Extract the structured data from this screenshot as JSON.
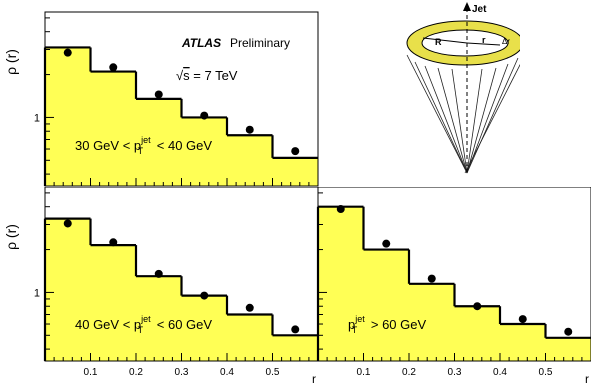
{
  "colors": {
    "fill": "#ffff55",
    "line": "#000000",
    "marker": "#000000",
    "cone_ring": "#e8e04a"
  },
  "ylabel": "ρ (r)",
  "xlabel": "r",
  "x_ticks": [
    "0.1",
    "0.2",
    "0.3",
    "0.4",
    "0.5"
  ],
  "y_tick_label": "1",
  "atlas": {
    "brand": "ATLAS",
    "status": "Preliminary",
    "energy_sqrt": "s",
    "energy_rest": " = 7 TeV"
  },
  "cone": {
    "jet": "Jet",
    "R": "R",
    "r": "r",
    "dr": "Δr"
  },
  "chart_data": [
    {
      "type": "histogram",
      "ylabel": "ρ (r)",
      "xlabel": "",
      "yscale": "log",
      "xlim": [
        0,
        0.6
      ],
      "ylim": [
        0.33,
        5.5
      ],
      "label": {
        "pre": "30 GeV < p",
        "sup": "jet",
        "sub": "T",
        "post": " < 40 GeV"
      },
      "bin_edges": [
        0,
        0.1,
        0.2,
        0.3,
        0.4,
        0.5,
        0.6
      ],
      "histogram_values": [
        3.1,
        2.1,
        1.35,
        1.0,
        0.75,
        0.52
      ],
      "points": {
        "x": [
          0.05,
          0.15,
          0.25,
          0.35,
          0.45,
          0.55
        ],
        "y": [
          2.85,
          2.25,
          1.45,
          1.03,
          0.82,
          0.58
        ]
      }
    },
    {
      "type": "histogram",
      "ylabel": "ρ (r)",
      "xlabel": "r",
      "yscale": "log",
      "xlim": [
        0,
        0.6
      ],
      "ylim": [
        0.33,
        5.5
      ],
      "label": {
        "pre": "40 GeV < p",
        "sup": "jet",
        "sub": "T",
        "post": " < 60 GeV"
      },
      "bin_edges": [
        0,
        0.1,
        0.2,
        0.3,
        0.4,
        0.5,
        0.6
      ],
      "histogram_values": [
        3.3,
        2.15,
        1.3,
        0.95,
        0.7,
        0.5
      ],
      "points": {
        "x": [
          0.05,
          0.15,
          0.25,
          0.35,
          0.45,
          0.55
        ],
        "y": [
          3.05,
          2.25,
          1.35,
          0.95,
          0.78,
          0.55
        ]
      }
    },
    {
      "type": "histogram",
      "ylabel": "",
      "xlabel": "r",
      "yscale": "log",
      "xlim": [
        0,
        0.6
      ],
      "ylim": [
        0.33,
        5.5
      ],
      "label": {
        "pre": "p",
        "sup": "jet",
        "sub": "T",
        "post": " > 60 GeV"
      },
      "bin_edges": [
        0,
        0.1,
        0.2,
        0.3,
        0.4,
        0.5,
        0.6
      ],
      "histogram_values": [
        4.0,
        2.0,
        1.15,
        0.8,
        0.6,
        0.48
      ],
      "points": {
        "x": [
          0.05,
          0.15,
          0.25,
          0.35,
          0.45,
          0.55
        ],
        "y": [
          3.85,
          2.2,
          1.25,
          0.8,
          0.65,
          0.53
        ]
      }
    }
  ]
}
